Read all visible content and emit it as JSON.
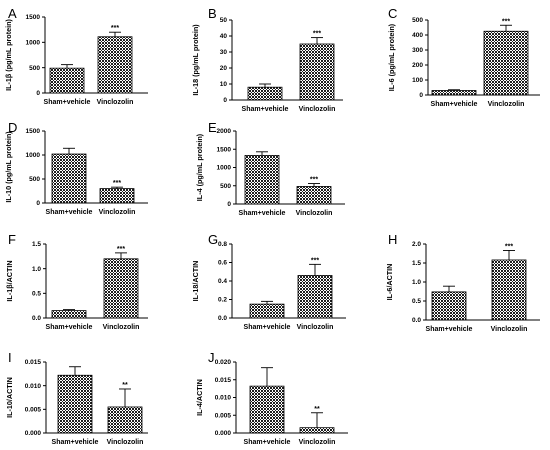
{
  "figure": {
    "background": "#ffffff",
    "bar_fill": "#2a2a2a",
    "bar_pattern": "checkered-halftone"
  },
  "chart_data": [
    {
      "panel": "A",
      "type": "bar",
      "categories": [
        "Sham+vehicle",
        "Vinclozolin"
      ],
      "values": [
        490,
        1110
      ],
      "errors": [
        70,
        90
      ],
      "significance": [
        "",
        "***"
      ],
      "ylabel": "IL-1β (pg/mL protein)",
      "ylim": [
        0,
        1500
      ],
      "yticks": [
        0,
        500,
        1000,
        1500
      ],
      "ytick_labels": [
        "0",
        "500",
        "1000",
        "1500"
      ]
    },
    {
      "panel": "B",
      "type": "bar",
      "categories": [
        "Sham+vehicle",
        "Vinclozolin"
      ],
      "values": [
        8,
        35
      ],
      "errors": [
        2,
        4
      ],
      "significance": [
        "",
        "***"
      ],
      "ylabel": "IL-18 (pg/mL protein)",
      "ylim": [
        0,
        50
      ],
      "yticks": [
        0,
        10,
        20,
        30,
        40,
        50
      ],
      "ytick_labels": [
        "0",
        "10",
        "20",
        "30",
        "40",
        "50"
      ]
    },
    {
      "panel": "C",
      "type": "bar",
      "categories": [
        "Sham+vehicle",
        "Vinclozolin"
      ],
      "values": [
        30,
        425
      ],
      "errors": [
        5,
        40
      ],
      "significance": [
        "",
        "***"
      ],
      "ylabel": "IL-6 (pg/mL protein)",
      "ylim": [
        0,
        500
      ],
      "yticks": [
        0,
        100,
        200,
        300,
        400,
        500
      ],
      "ytick_labels": [
        "0",
        "100",
        "200",
        "300",
        "400",
        "500"
      ]
    },
    {
      "panel": "D",
      "type": "bar",
      "categories": [
        "Sham+vehicle",
        "Vinclozolin"
      ],
      "values": [
        1020,
        300
      ],
      "errors": [
        120,
        30
      ],
      "significance": [
        "",
        "***"
      ],
      "ylabel": "IL-10 (pg/mL protein)",
      "ylim": [
        0,
        1500
      ],
      "yticks": [
        0,
        500,
        1000,
        1500
      ],
      "ytick_labels": [
        "0",
        "500",
        "1000",
        "1500"
      ]
    },
    {
      "panel": "E",
      "type": "bar",
      "categories": [
        "Sham+vehicle",
        "Vinclozolin"
      ],
      "values": [
        1330,
        480
      ],
      "errors": [
        100,
        80
      ],
      "significance": [
        "",
        "***"
      ],
      "ylabel": "IL-4 (pg/mL protein)",
      "ylim": [
        0,
        2000
      ],
      "yticks": [
        0,
        500,
        1000,
        1500,
        2000
      ],
      "ytick_labels": [
        "0",
        "500",
        "1000",
        "1500",
        "2000"
      ]
    },
    {
      "panel": "F",
      "type": "bar",
      "categories": [
        "Sham+vehicle",
        "Vinclozolin"
      ],
      "values": [
        0.15,
        1.2
      ],
      "errors": [
        0.02,
        0.12
      ],
      "significance": [
        "",
        "***"
      ],
      "ylabel": "IL-1β/ACTIN",
      "ylim": [
        0,
        1.5
      ],
      "yticks": [
        0,
        0.5,
        1.0,
        1.5
      ],
      "ytick_labels": [
        "0.0",
        "0.5",
        "1.0",
        "1.5"
      ]
    },
    {
      "panel": "G",
      "type": "bar",
      "categories": [
        "Sham+vehicle",
        "Vinclozolin"
      ],
      "values": [
        0.15,
        0.46
      ],
      "errors": [
        0.03,
        0.12
      ],
      "significance": [
        "",
        "***"
      ],
      "ylabel": "IL-18/ACTIN",
      "ylim": [
        0,
        0.8
      ],
      "yticks": [
        0,
        0.2,
        0.4,
        0.6,
        0.8
      ],
      "ytick_labels": [
        "0.0",
        "0.2",
        "0.4",
        "0.6",
        "0.8"
      ]
    },
    {
      "panel": "H",
      "type": "bar",
      "categories": [
        "Sham+vehicle",
        "Vinclozolin"
      ],
      "values": [
        0.74,
        1.58
      ],
      "errors": [
        0.15,
        0.25
      ],
      "significance": [
        "",
        "***"
      ],
      "ylabel": "IL-6/ACTIN",
      "ylim": [
        0,
        2.0
      ],
      "yticks": [
        0,
        0.5,
        1.0,
        1.5,
        2.0
      ],
      "ytick_labels": [
        "0.0",
        "0.5",
        "1.0",
        "1.5",
        "2.0"
      ]
    },
    {
      "panel": "I",
      "type": "bar",
      "categories": [
        "Sham+vehicle",
        "Vinclozolin"
      ],
      "values": [
        0.0122,
        0.0055
      ],
      "errors": [
        0.0018,
        0.0038
      ],
      "significance": [
        "",
        "**"
      ],
      "ylabel": "IL-10/ACTIN",
      "ylim": [
        0,
        0.015
      ],
      "yticks": [
        0,
        0.005,
        0.01,
        0.015
      ],
      "ytick_labels": [
        "0.000",
        "0.005",
        "0.010",
        "0.015"
      ]
    },
    {
      "panel": "J",
      "type": "bar",
      "categories": [
        "Sham+vehicle",
        "Vinclozolin"
      ],
      "values": [
        0.0132,
        0.0015
      ],
      "errors": [
        0.0052,
        0.0042
      ],
      "significance": [
        "",
        "**"
      ],
      "ylabel": "IL-4/ACTIN",
      "ylim": [
        0,
        0.02
      ],
      "yticks": [
        0,
        0.005,
        0.01,
        0.015,
        0.02
      ],
      "ytick_labels": [
        "0.000",
        "0.005",
        "0.010",
        "0.015",
        "0.020"
      ]
    }
  ]
}
